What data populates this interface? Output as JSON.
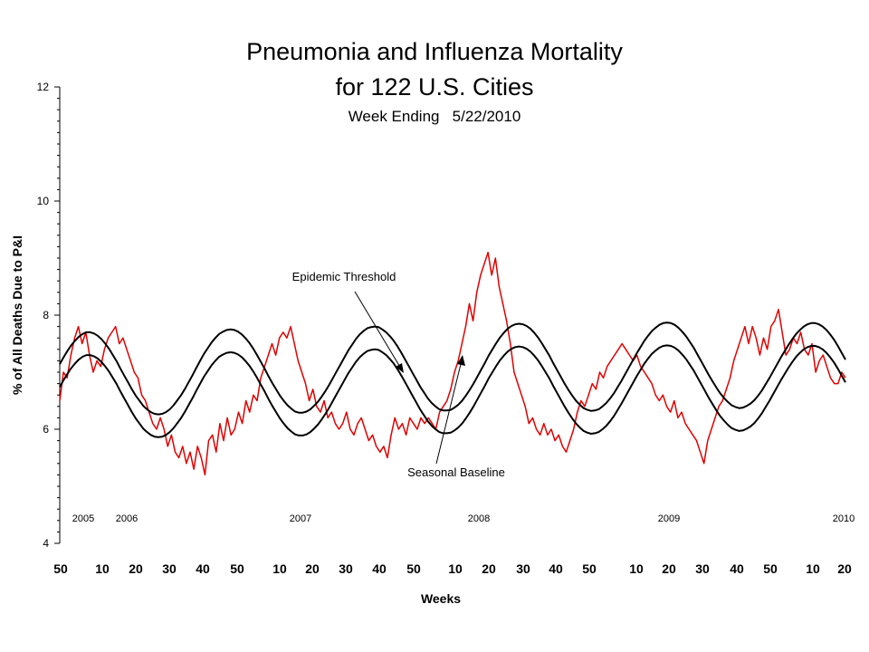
{
  "chart_data": {
    "type": "line",
    "title_line1": "Pneumonia and Influenza Mortality",
    "title_line2": "for 122 U.S. Cities",
    "subtitle": "Week Ending   5/22/2010",
    "ylabel": "% of All Deaths Due to P&I",
    "xlabel": "Weeks",
    "ylim": [
      4,
      12
    ],
    "yticks": [
      "4",
      "6",
      "8",
      "10",
      "12"
    ],
    "xticks": [
      "50",
      "10",
      "20",
      "30",
      "40",
      "50",
      "10",
      "20",
      "30",
      "40",
      "50",
      "10",
      "20",
      "30",
      "40",
      "50",
      "10",
      "20",
      "30",
      "40",
      "50",
      "10",
      "20"
    ],
    "years": [
      "2005",
      "2006",
      "2007",
      "2008",
      "2009",
      "2010"
    ],
    "grid": false,
    "legend": "none",
    "annotations": {
      "threshold": "Epidemic Threshold",
      "baseline": "Seasonal Baseline"
    },
    "series": [
      {
        "color": "#e00000",
        "values": [
          6.5,
          7.0,
          6.9,
          7.3,
          7.6,
          7.8,
          7.5,
          7.7,
          7.3,
          7.0,
          7.2,
          7.1,
          7.4,
          7.6,
          7.7,
          7.8,
          7.5,
          7.6,
          7.4,
          7.2,
          7.0,
          6.9,
          6.6,
          6.5,
          6.3,
          6.1,
          6.0,
          6.2,
          6.0,
          5.7,
          5.9,
          5.6,
          5.5,
          5.7,
          5.4,
          5.6,
          5.3,
          5.7,
          5.5,
          5.2,
          5.8,
          5.9,
          5.6,
          6.1,
          5.8,
          6.2,
          5.9,
          6.0,
          6.3,
          6.1,
          6.5,
          6.3,
          6.6,
          6.5,
          6.9,
          7.1,
          7.3,
          7.5,
          7.3,
          7.6,
          7.7,
          7.6,
          7.8,
          7.5,
          7.2,
          7.0,
          6.8,
          6.5,
          6.7,
          6.4,
          6.3,
          6.5,
          6.2,
          6.3,
          6.1,
          6.0,
          6.1,
          6.3,
          6.0,
          5.9,
          6.1,
          6.2,
          6.0,
          5.8,
          5.9,
          5.7,
          5.6,
          5.7,
          5.5,
          5.9,
          6.2,
          6.0,
          6.1,
          5.9,
          6.2,
          6.1,
          6.0,
          6.2,
          6.1,
          6.2,
          6.1,
          6.0,
          6.3,
          6.4,
          6.5,
          6.7,
          7.0,
          7.2,
          7.5,
          7.8,
          8.2,
          7.9,
          8.4,
          8.7,
          8.9,
          9.1,
          8.7,
          9.0,
          8.5,
          8.2,
          7.9,
          7.5,
          7.0,
          6.8,
          6.6,
          6.4,
          6.1,
          6.2,
          6.0,
          5.9,
          6.1,
          5.9,
          6.0,
          5.8,
          5.9,
          5.7,
          5.6,
          5.8,
          6.0,
          6.3,
          6.5,
          6.4,
          6.6,
          6.8,
          6.7,
          7.0,
          6.9,
          7.1,
          7.2,
          7.3,
          7.4,
          7.5,
          7.4,
          7.3,
          7.2,
          7.3,
          7.1,
          7.0,
          6.9,
          6.8,
          6.6,
          6.5,
          6.6,
          6.4,
          6.3,
          6.5,
          6.2,
          6.3,
          6.1,
          6.0,
          5.9,
          5.8,
          5.6,
          5.4,
          5.8,
          6.0,
          6.2,
          6.4,
          6.5,
          6.7,
          6.9,
          7.2,
          7.4,
          7.6,
          7.8,
          7.5,
          7.8,
          7.6,
          7.3,
          7.6,
          7.4,
          7.8,
          7.9,
          8.1,
          7.7,
          7.3,
          7.4,
          7.6,
          7.5,
          7.7,
          7.4,
          7.3,
          7.5,
          7.0,
          7.2,
          7.3,
          7.1,
          6.9,
          6.8,
          6.8,
          7.0,
          6.9
        ]
      },
      {
        "name": "Epidemic Threshold",
        "color": "#000000",
        "values": [
          7.14,
          7.26,
          7.37,
          7.47,
          7.55,
          7.62,
          7.67,
          7.7,
          7.7,
          7.68,
          7.64,
          7.58,
          7.5,
          7.41,
          7.3,
          7.19,
          7.06,
          6.94,
          6.82,
          6.7,
          6.59,
          6.5,
          6.41,
          6.35,
          6.3,
          6.27,
          6.26,
          6.27,
          6.3,
          6.35,
          6.42,
          6.51,
          6.6,
          6.71,
          6.83,
          6.95,
          7.08,
          7.2,
          7.32,
          7.42,
          7.52,
          7.6,
          7.67,
          7.71,
          7.74,
          7.75,
          7.74,
          7.71,
          7.66,
          7.59,
          7.51,
          7.41,
          7.3,
          7.18,
          7.06,
          6.93,
          6.81,
          6.7,
          6.59,
          6.5,
          6.42,
          6.36,
          6.31,
          6.29,
          6.29,
          6.31,
          6.35,
          6.41,
          6.48,
          6.57,
          6.67,
          6.78,
          6.9,
          7.02,
          7.14,
          7.26,
          7.38,
          7.48,
          7.58,
          7.66,
          7.72,
          7.77,
          7.79,
          7.8,
          7.79,
          7.75,
          7.7,
          7.63,
          7.55,
          7.45,
          7.34,
          7.22,
          7.1,
          6.98,
          6.86,
          6.74,
          6.64,
          6.54,
          6.46,
          6.4,
          6.35,
          6.33,
          6.33,
          6.34,
          6.38,
          6.43,
          6.5,
          6.59,
          6.69,
          6.8,
          6.92,
          7.04,
          7.16,
          7.29,
          7.4,
          7.51,
          7.61,
          7.69,
          7.76,
          7.81,
          7.84,
          7.85,
          7.84,
          7.81,
          7.76,
          7.69,
          7.61,
          7.51,
          7.4,
          7.29,
          7.16,
          7.04,
          6.92,
          6.8,
          6.69,
          6.59,
          6.5,
          6.43,
          6.37,
          6.34,
          6.32,
          6.33,
          6.35,
          6.4,
          6.46,
          6.54,
          6.63,
          6.74,
          6.85,
          6.97,
          7.09,
          7.21,
          7.33,
          7.44,
          7.55,
          7.64,
          7.72,
          7.78,
          7.83,
          7.86,
          7.87,
          7.86,
          7.83,
          7.78,
          7.71,
          7.63,
          7.53,
          7.43,
          7.31,
          7.19,
          7.07,
          6.95,
          6.84,
          6.73,
          6.63,
          6.55,
          6.48,
          6.42,
          6.39,
          6.37,
          6.38,
          6.41,
          6.45,
          6.51,
          6.59,
          6.68,
          6.79,
          6.9,
          7.02,
          7.14,
          7.26,
          7.37,
          7.48,
          7.58,
          7.67,
          7.74,
          7.8,
          7.84,
          7.86,
          7.86,
          7.84,
          7.8,
          7.74,
          7.66,
          7.57,
          7.46,
          7.34,
          7.22
        ]
      },
      {
        "name": "Seasonal Baseline",
        "color": "#000000",
        "values": [
          6.74,
          6.86,
          6.97,
          7.07,
          7.15,
          7.22,
          7.27,
          7.3,
          7.3,
          7.28,
          7.24,
          7.18,
          7.1,
          7.01,
          6.9,
          6.79,
          6.66,
          6.54,
          6.42,
          6.3,
          6.19,
          6.1,
          6.01,
          5.95,
          5.9,
          5.87,
          5.86,
          5.87,
          5.9,
          5.95,
          6.02,
          6.11,
          6.2,
          6.31,
          6.43,
          6.55,
          6.68,
          6.8,
          6.92,
          7.02,
          7.12,
          7.2,
          7.27,
          7.31,
          7.34,
          7.35,
          7.34,
          7.31,
          7.26,
          7.19,
          7.11,
          7.01,
          6.9,
          6.78,
          6.66,
          6.53,
          6.41,
          6.3,
          6.19,
          6.1,
          6.02,
          5.96,
          5.91,
          5.89,
          5.89,
          5.91,
          5.95,
          6.01,
          6.08,
          6.17,
          6.27,
          6.38,
          6.5,
          6.62,
          6.74,
          6.86,
          6.98,
          7.08,
          7.18,
          7.26,
          7.32,
          7.37,
          7.39,
          7.4,
          7.39,
          7.35,
          7.3,
          7.23,
          7.15,
          7.05,
          6.94,
          6.82,
          6.7,
          6.58,
          6.46,
          6.34,
          6.24,
          6.14,
          6.06,
          6.0,
          5.95,
          5.93,
          5.93,
          5.94,
          5.98,
          6.03,
          6.1,
          6.19,
          6.29,
          6.4,
          6.52,
          6.64,
          6.76,
          6.89,
          7.0,
          7.11,
          7.21,
          7.29,
          7.36,
          7.41,
          7.44,
          7.45,
          7.44,
          7.41,
          7.36,
          7.29,
          7.21,
          7.11,
          7.0,
          6.89,
          6.76,
          6.64,
          6.52,
          6.4,
          6.29,
          6.19,
          6.1,
          6.03,
          5.97,
          5.94,
          5.92,
          5.93,
          5.95,
          6.0,
          6.06,
          6.14,
          6.23,
          6.34,
          6.45,
          6.57,
          6.69,
          6.81,
          6.93,
          7.04,
          7.15,
          7.24,
          7.32,
          7.38,
          7.43,
          7.46,
          7.47,
          7.46,
          7.43,
          7.38,
          7.31,
          7.23,
          7.13,
          7.03,
          6.91,
          6.79,
          6.67,
          6.55,
          6.44,
          6.33,
          6.23,
          6.15,
          6.08,
          6.02,
          5.99,
          5.97,
          5.98,
          6.01,
          6.05,
          6.11,
          6.19,
          6.28,
          6.39,
          6.5,
          6.62,
          6.74,
          6.86,
          6.97,
          7.08,
          7.18,
          7.27,
          7.34,
          7.4,
          7.44,
          7.46,
          7.46,
          7.44,
          7.4,
          7.34,
          7.26,
          7.17,
          7.06,
          6.94,
          6.82
        ]
      }
    ]
  }
}
